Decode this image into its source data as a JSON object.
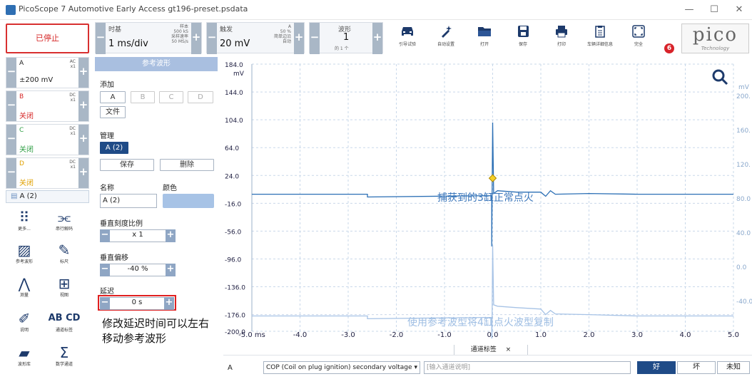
{
  "window": {
    "title": "PicoScope 7 Automotive Early Access gt196-preset.psdata",
    "minimize": "—",
    "maximize": "☐",
    "close": "✕"
  },
  "toolbar": {
    "stop_label": "已停止",
    "timebase": {
      "label": "时基",
      "value": "1 ms/div",
      "info1": "样本",
      "info2": "500 kS",
      "info3": "采样速率",
      "info4": "50 MS/s"
    },
    "trigger": {
      "label": "触发",
      "value": "20 mV",
      "info1": "A",
      "info2": "50 %",
      "info3": "简单边沿",
      "info4": "自动"
    },
    "waveform": {
      "label": "波形",
      "value": "1",
      "sub": "的 1 个"
    },
    "tools": [
      {
        "label": "引导试验",
        "icon": "car-icon"
      },
      {
        "label": "自动设置",
        "icon": "magic-wand-icon"
      },
      {
        "label": "打开",
        "icon": "folder-icon"
      },
      {
        "label": "保存",
        "icon": "save-icon"
      },
      {
        "label": "打印",
        "icon": "print-icon"
      },
      {
        "label": "车辆详细信息",
        "icon": "clipboard-icon"
      },
      {
        "label": "完全",
        "icon": "fullscreen-icon"
      }
    ],
    "badge_count": "6",
    "logo_word": "pico",
    "logo_sub": "Technology"
  },
  "channels": [
    {
      "name": "A",
      "coupling": "AC",
      "probe": "x1",
      "value": "±200 mV",
      "color": "#1f5fa8"
    },
    {
      "name": "B",
      "coupling": "DC",
      "probe": "x1",
      "value": "关闭",
      "color": "#d62828"
    },
    {
      "name": "C",
      "coupling": "DC",
      "probe": "x1",
      "value": "关闭",
      "color": "#2f9e44"
    },
    {
      "name": "D",
      "coupling": "DC",
      "probe": "x1",
      "value": "关闭",
      "color": "#e0a000"
    }
  ],
  "ref_tag": "A (2)",
  "left_tools": [
    {
      "label": "更多...",
      "icon": "grid-dots-icon"
    },
    {
      "label": "串行解码",
      "icon": "serial-decode-icon"
    },
    {
      "label": "参考波形",
      "icon": "reference-waveform-icon"
    },
    {
      "label": "标尺",
      "icon": "ruler-icon"
    },
    {
      "label": "测量",
      "icon": "measure-icon"
    },
    {
      "label": "视图",
      "icon": "view-grid-icon"
    },
    {
      "label": "说明",
      "icon": "note-icon"
    },
    {
      "label": "通道标签",
      "icon": "channel-labels-icon"
    },
    {
      "label": "波形库",
      "icon": "waveform-library-icon"
    },
    {
      "label": "数学通道",
      "icon": "sigma-icon"
    }
  ],
  "ref_panel": {
    "header": "参考波形",
    "add_label": "添加",
    "add_buttons": [
      "A",
      "B",
      "C",
      "D"
    ],
    "file_button": "文件",
    "manage_label": "管理",
    "selected_ref": "A (2)",
    "save_button": "保存",
    "delete_button": "删除",
    "name_label": "名称",
    "color_label": "颜色",
    "name_value": "A (2)",
    "color_value": "#a7c3e6",
    "vscale_label": "垂直刻度比例",
    "vscale_value": "x 1",
    "voffset_label": "垂直偏移",
    "voffset_value": "-40 %",
    "delay_label": "延迟",
    "delay_value": "0 s",
    "annotation": "修改延迟时间可以左右移动参考波形"
  },
  "chart_data": {
    "type": "line",
    "x_unit": "ms",
    "xlim": [
      -5.0,
      5.0
    ],
    "x_ticks": [
      "-5.0 ms",
      "-4.0",
      "-3.0",
      "-2.0",
      "-1.0",
      "0.0",
      "1.0",
      "2.0",
      "3.0",
      "4.0",
      "5.0"
    ],
    "y_unit": "mV",
    "ylim": [
      -200,
      184
    ],
    "y_ticks_left": [
      "184.0",
      "144.0",
      "104.0",
      "64.0",
      "24.0",
      "-16.0",
      "-56.0",
      "-96.0",
      "-136.0",
      "-176.0",
      "-200.0"
    ],
    "y_ticks_right_unit": "mV",
    "y_ticks_right": [
      "200.",
      "160.",
      "120.",
      "80.0",
      "40.0",
      "0.0",
      "-40.0"
    ],
    "grid": true,
    "trigger_marker": {
      "x": 0.0,
      "y": 20
    },
    "series": [
      {
        "color": "#2b6fb5",
        "x": [
          -5.0,
          -2.6,
          -2.6,
          -0.02,
          -0.02,
          0.0,
          0.02,
          0.1,
          0.5,
          1.0,
          1.1,
          1.2,
          1.3,
          2.0,
          3.0,
          5.0
        ],
        "y": [
          -3,
          -3,
          -7,
          -5,
          -78,
          100,
          -2,
          2,
          0,
          0,
          -6,
          2,
          -3,
          -2,
          -3,
          -3
        ]
      },
      {
        "color": "#a7c3e6",
        "x": [
          -5.0,
          -2.6,
          -2.6,
          -0.02,
          -0.02,
          0.0,
          0.02,
          0.1,
          0.5,
          1.0,
          1.1,
          1.2,
          1.3,
          2.0,
          3.0,
          5.0
        ],
        "y": [
          -178,
          -178,
          -182,
          -180,
          -253,
          -76,
          -162,
          -164,
          -166,
          -168,
          -176,
          -170,
          -175,
          -176,
          -178,
          -178
        ]
      }
    ],
    "annotations": [
      "捕获到的3缸正常点火",
      "使用参考波型将4缸点火波型复制"
    ]
  },
  "bottom": {
    "tab_label": "通道标签",
    "tab_close": "×",
    "channel": "A",
    "select_value": "COP (Coil on plug ignition) secondary voltage",
    "input_placeholder": "[输入通道说明]",
    "good": "好",
    "bad": "坏",
    "unknown": "未知"
  }
}
